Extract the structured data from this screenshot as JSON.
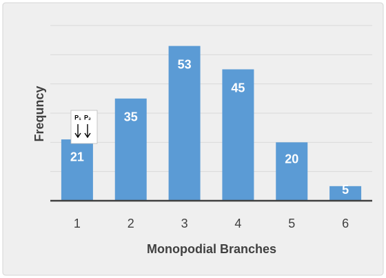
{
  "chart_data": {
    "type": "bar",
    "x_label": "Monopodial Branches",
    "y_label": "Frequncy",
    "categories": [
      "1",
      "2",
      "3",
      "4",
      "5",
      "6"
    ],
    "values": [
      21,
      35,
      53,
      45,
      20,
      5
    ],
    "color": "#5b9bd5",
    "ylim": [
      0,
      60
    ],
    "yticks": [
      0,
      10,
      20,
      30,
      40,
      50,
      60
    ],
    "grid": true,
    "annotations": [
      "P₁",
      "P₂"
    ]
  }
}
